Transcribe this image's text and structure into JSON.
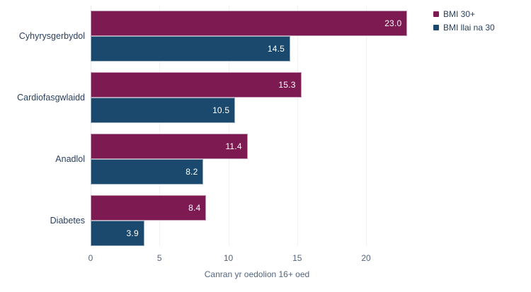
{
  "chart_data": {
    "type": "bar",
    "orientation": "horizontal",
    "title": "",
    "categories": [
      "Cyhyrysgerbydol",
      "Cardiofasgwlaidd",
      "Anadlol",
      "Diabetes"
    ],
    "series": [
      {
        "name": "BMI 30+",
        "color": "#7D1A52",
        "values": [
          23.0,
          15.3,
          11.4,
          8.4
        ]
      },
      {
        "name": "BMI llai na 30",
        "color": "#1B496E",
        "values": [
          14.5,
          10.5,
          8.2,
          3.9
        ]
      }
    ],
    "xlabel": "Canran yr oedolion 16+ oed",
    "xticks": [
      0,
      5,
      10,
      15,
      20
    ],
    "xlim": [
      0,
      24
    ],
    "grid": true,
    "legend_position": "top-right",
    "value_label_format": "one-decimal",
    "colors": {
      "value_label": "#ffffff",
      "category_text": "#2a3f5f",
      "tick_text": "#53647e",
      "axis_title_text": "#53647e",
      "legend_text": "#2a3f5f",
      "gridline": "#f2f2f5",
      "zeroline": "#eaeaef",
      "background": "#ffffff"
    }
  }
}
